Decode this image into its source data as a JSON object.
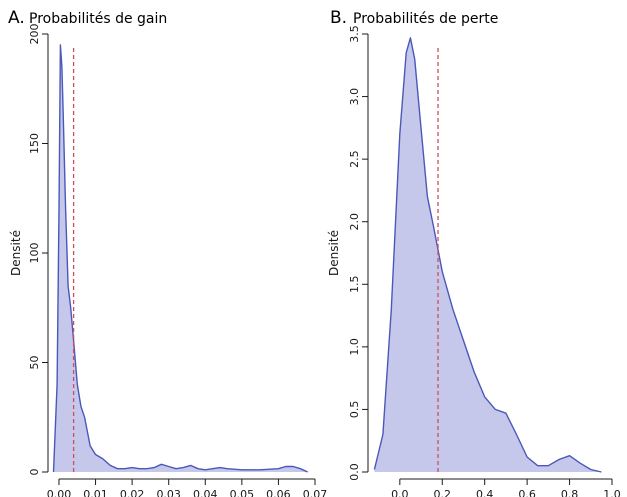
{
  "chart_data": [
    {
      "type": "area",
      "panel": "A.",
      "title": "Probabilités de gain",
      "xlabel": "",
      "ylabel": "Densité",
      "xlim": [
        -0.003,
        0.07
      ],
      "ylim": [
        0,
        200
      ],
      "xticks": [
        0.0,
        0.01,
        0.02,
        0.03,
        0.04,
        0.05,
        0.06,
        0.07
      ],
      "xtick_labels": [
        "0.00",
        "0.01",
        "0.02",
        "0.03",
        "0.04",
        "0.05",
        "0.06",
        "0.07"
      ],
      "yticks": [
        0,
        50,
        100,
        150,
        200
      ],
      "ytick_labels": [
        "0",
        "50",
        "100",
        "150",
        "200"
      ],
      "reference_line_x": 0.004,
      "series": [
        {
          "x": [
            -0.0015,
            -0.0005,
            0.0,
            0.0004,
            0.0008,
            0.0012,
            0.0018,
            0.0025,
            0.0032,
            0.004,
            0.005,
            0.006,
            0.007,
            0.0085,
            0.01,
            0.012,
            0.014,
            0.016,
            0.018,
            0.02,
            0.022,
            0.024,
            0.026,
            0.028,
            0.03,
            0.032,
            0.034,
            0.036,
            0.038,
            0.04,
            0.042,
            0.044,
            0.046,
            0.05,
            0.055,
            0.06,
            0.062,
            0.064,
            0.066,
            0.068
          ],
          "y": [
            0,
            40,
            120,
            195,
            185,
            160,
            120,
            85,
            75,
            60,
            40,
            30,
            25,
            12,
            8,
            6,
            3,
            1.5,
            1.5,
            2,
            1.5,
            1.5,
            2,
            3.5,
            2.5,
            1.5,
            2,
            3,
            1.5,
            1,
            1.5,
            2,
            1.5,
            1,
            1,
            1.5,
            2.5,
            2.5,
            1.5,
            0
          ]
        }
      ],
      "colors": {
        "fill": "#c5c8ea",
        "line": "#4a58b8",
        "reference": "#d44a5c"
      }
    },
    {
      "type": "area",
      "panel": "B.",
      "title": "Probabilités de perte",
      "xlabel": "",
      "ylabel": "Densité",
      "xlim": [
        -0.15,
        1.0
      ],
      "ylim": [
        0,
        3.5
      ],
      "xticks": [
        0.0,
        0.2,
        0.4,
        0.6,
        0.8,
        1.0
      ],
      "xtick_labels": [
        "0.0",
        "0.2",
        "0.4",
        "0.6",
        "0.8",
        "1.0"
      ],
      "yticks": [
        0.0,
        0.5,
        1.0,
        1.5,
        2.0,
        2.5,
        3.0,
        3.5
      ],
      "ytick_labels": [
        "0.0",
        "0.5",
        "1.0",
        "1.5",
        "2.0",
        "2.5",
        "3.0",
        "3.5"
      ],
      "reference_line_x": 0.18,
      "series": [
        {
          "x": [
            -0.12,
            -0.08,
            -0.04,
            0.0,
            0.03,
            0.05,
            0.07,
            0.1,
            0.13,
            0.16,
            0.2,
            0.25,
            0.3,
            0.35,
            0.4,
            0.45,
            0.5,
            0.55,
            0.6,
            0.65,
            0.7,
            0.75,
            0.8,
            0.85,
            0.9,
            0.95
          ],
          "y": [
            0.02,
            0.3,
            1.3,
            2.7,
            3.35,
            3.47,
            3.3,
            2.75,
            2.2,
            1.95,
            1.6,
            1.3,
            1.05,
            0.8,
            0.6,
            0.5,
            0.47,
            0.3,
            0.12,
            0.05,
            0.05,
            0.1,
            0.13,
            0.07,
            0.02,
            0.0
          ]
        }
      ],
      "colors": {
        "fill": "#c5c8ea",
        "line": "#4a58b8",
        "reference": "#d44a5c"
      }
    }
  ]
}
